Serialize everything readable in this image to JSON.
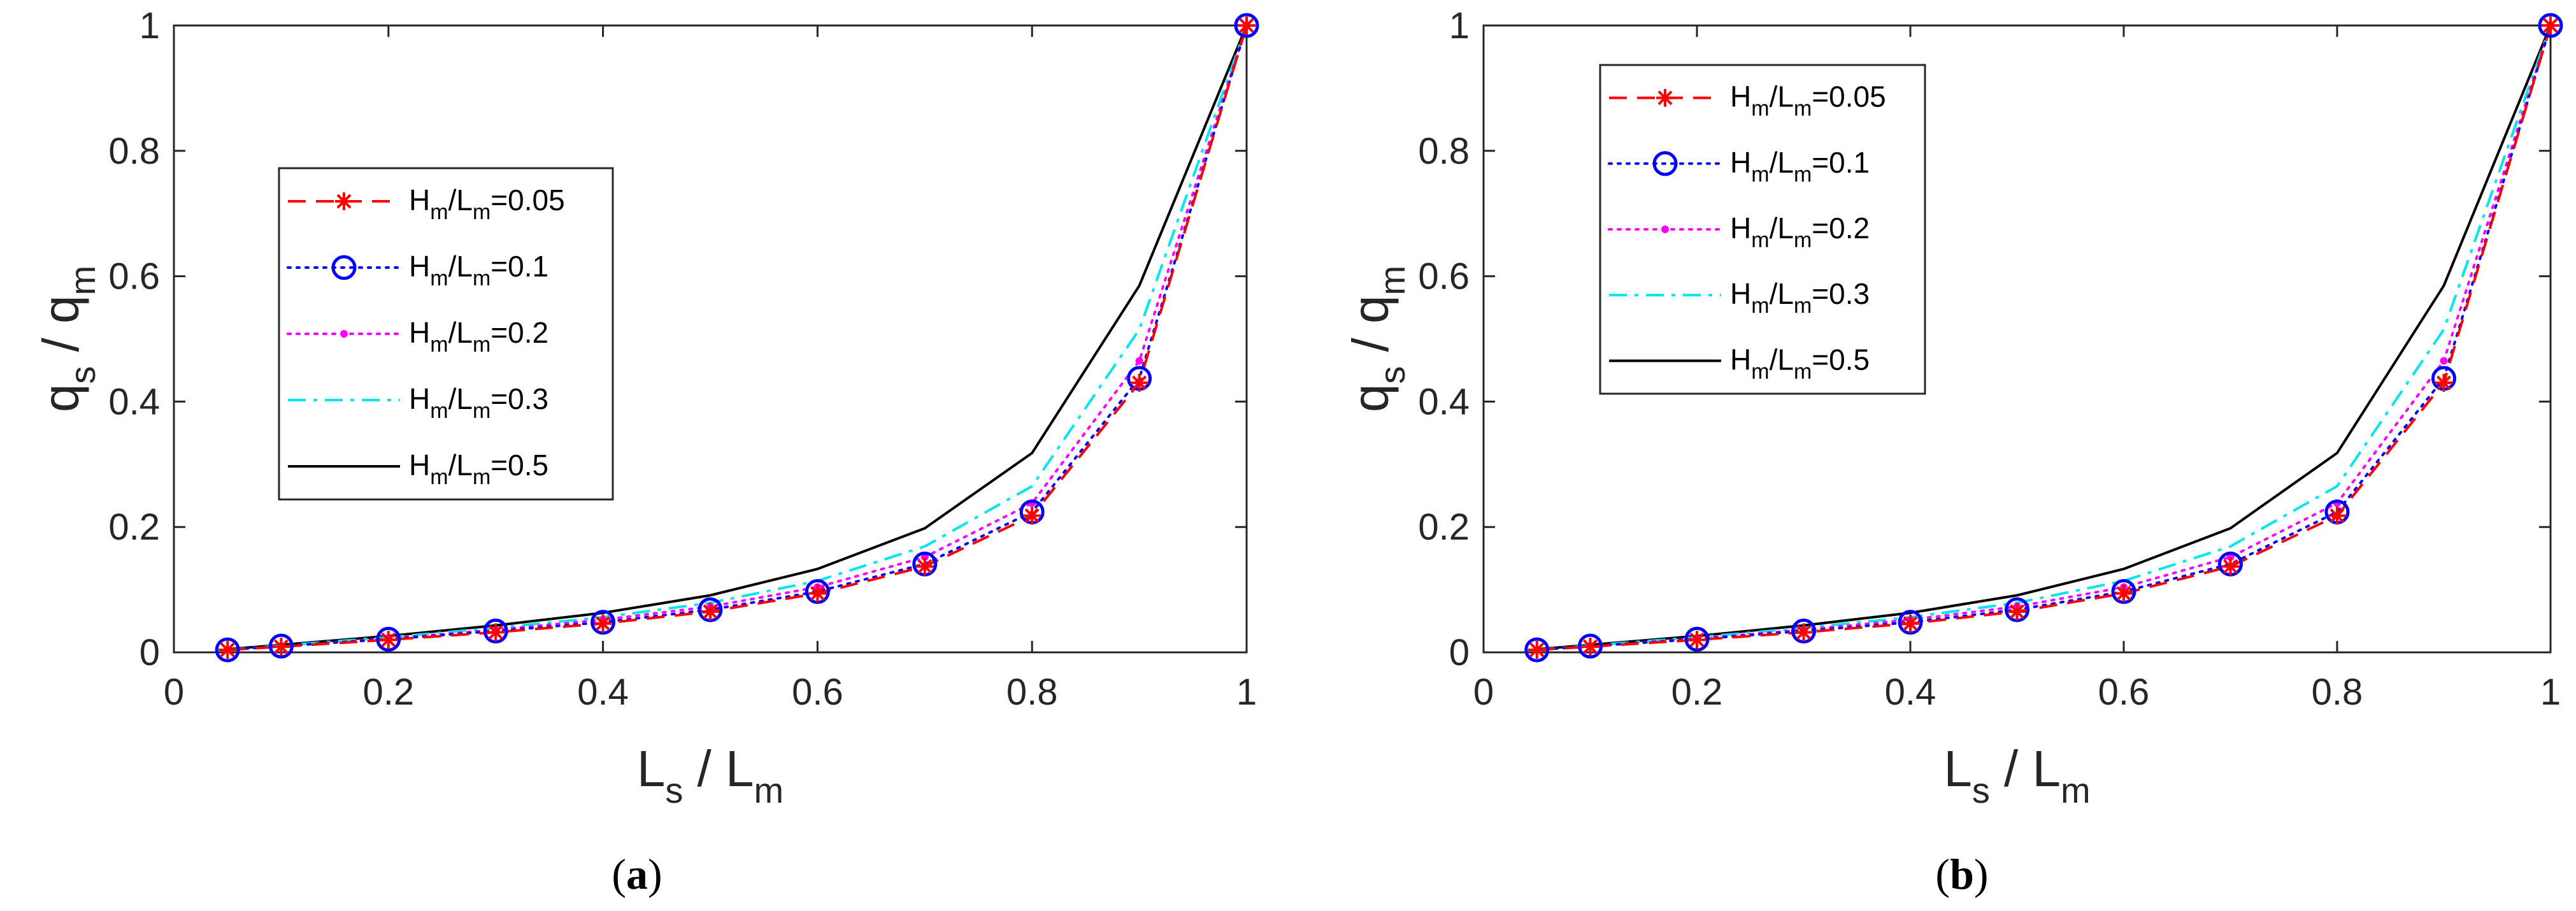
{
  "chart_data": [
    {
      "type": "line",
      "panel": "a",
      "caption": {
        "open": "(",
        "letter": "a",
        "close": ")"
      },
      "xlabel": {
        "main": "L",
        "sub1": "s",
        "sep": " / L",
        "sub2": "m"
      },
      "ylabel": {
        "main": "q",
        "sub1": "s",
        "sep": " / q",
        "sub2": "m"
      },
      "xlim": [
        0,
        1
      ],
      "ylim": [
        0,
        1
      ],
      "xticks": [
        0,
        0.2,
        0.4,
        0.6,
        0.8,
        1
      ],
      "xtick_labels": [
        "0",
        "0.2",
        "0.4",
        "0.6",
        "0.8",
        "1"
      ],
      "yticks": [
        0,
        0.2,
        0.4,
        0.6,
        0.8,
        1
      ],
      "ytick_labels": [
        "0",
        "0.2",
        "0.4",
        "0.6",
        "0.8",
        "1"
      ],
      "legend_position": "middle-left",
      "x": [
        0.05,
        0.1,
        0.2,
        0.3,
        0.4,
        0.5,
        0.6,
        0.7,
        0.8,
        0.9,
        1.0
      ],
      "series": [
        {
          "name": "Hm/Lm=0.05",
          "label": {
            "a": "H",
            "b": "m",
            "c": "/L",
            "d": "m",
            "e": "=0.05"
          },
          "color": "#ff0000",
          "line": "dashed",
          "marker": "asterisk",
          "values": [
            0.004,
            0.009,
            0.02,
            0.032,
            0.046,
            0.065,
            0.094,
            0.137,
            0.218,
            0.43,
            1.0
          ]
        },
        {
          "name": "Hm/Lm=0.1",
          "label": {
            "a": "H",
            "b": "m",
            "c": "/L",
            "d": "m",
            "e": "=0.1"
          },
          "color": "#0000ff",
          "line": "dotted",
          "marker": "circle",
          "values": [
            0.004,
            0.01,
            0.021,
            0.034,
            0.048,
            0.068,
            0.097,
            0.141,
            0.224,
            0.437,
            1.0
          ]
        },
        {
          "name": "Hm/Lm=0.2",
          "label": {
            "a": "H",
            "b": "m",
            "c": "/L",
            "d": "m",
            "e": "=0.2"
          },
          "color": "#ff00ff",
          "line": "dotted",
          "marker": "point",
          "values": [
            0.004,
            0.01,
            0.022,
            0.036,
            0.052,
            0.073,
            0.104,
            0.152,
            0.238,
            0.465,
            1.0
          ]
        },
        {
          "name": "Hm/Lm=0.3",
          "label": {
            "a": "H",
            "b": "m",
            "c": "/L",
            "d": "m",
            "e": "=0.3"
          },
          "color": "#00e5ee",
          "line": "dashdot",
          "marker": "none",
          "values": [
            0.004,
            0.011,
            0.024,
            0.039,
            0.056,
            0.079,
            0.114,
            0.169,
            0.265,
            0.515,
            1.0
          ]
        },
        {
          "name": "Hm/Lm=0.5",
          "label": {
            "a": "H",
            "b": "m",
            "c": "/L",
            "d": "m",
            "e": "=0.5"
          },
          "color": "#000000",
          "line": "solid",
          "marker": "none",
          "values": [
            0.005,
            0.012,
            0.026,
            0.043,
            0.063,
            0.091,
            0.133,
            0.198,
            0.318,
            0.585,
            1.0
          ]
        }
      ]
    },
    {
      "type": "line",
      "panel": "b",
      "caption": {
        "open": "(",
        "letter": "b",
        "close": ")"
      },
      "xlabel": {
        "main": "L",
        "sub1": "s",
        "sep": " / L",
        "sub2": "m"
      },
      "ylabel": {
        "main": "q",
        "sub1": "s",
        "sep": " / q",
        "sub2": "m"
      },
      "xlim": [
        0,
        1
      ],
      "ylim": [
        0,
        1
      ],
      "xticks": [
        0,
        0.2,
        0.4,
        0.6,
        0.8,
        1
      ],
      "xtick_labels": [
        "0",
        "0.2",
        "0.4",
        "0.6",
        "0.8",
        "1"
      ],
      "yticks": [
        0,
        0.2,
        0.4,
        0.6,
        0.8,
        1
      ],
      "ytick_labels": [
        "0",
        "0.2",
        "0.4",
        "0.6",
        "0.8",
        "1"
      ],
      "legend_position": "top-left",
      "x": [
        0.05,
        0.1,
        0.2,
        0.3,
        0.4,
        0.5,
        0.6,
        0.7,
        0.8,
        0.9,
        1.0
      ],
      "series": [
        {
          "name": "Hm/Lm=0.05",
          "label": {
            "a": "H",
            "b": "m",
            "c": "/L",
            "d": "m",
            "e": "=0.05"
          },
          "color": "#ff0000",
          "line": "dashed",
          "marker": "asterisk",
          "values": [
            0.004,
            0.009,
            0.02,
            0.032,
            0.046,
            0.065,
            0.094,
            0.137,
            0.218,
            0.43,
            1.0
          ]
        },
        {
          "name": "Hm/Lm=0.1",
          "label": {
            "a": "H",
            "b": "m",
            "c": "/L",
            "d": "m",
            "e": "=0.1"
          },
          "color": "#0000ff",
          "line": "dotted",
          "marker": "circle",
          "values": [
            0.004,
            0.01,
            0.021,
            0.034,
            0.048,
            0.068,
            0.097,
            0.141,
            0.224,
            0.437,
            1.0
          ]
        },
        {
          "name": "Hm/Lm=0.2",
          "label": {
            "a": "H",
            "b": "m",
            "c": "/L",
            "d": "m",
            "e": "=0.2"
          },
          "color": "#ff00ff",
          "line": "dotted",
          "marker": "point",
          "values": [
            0.004,
            0.01,
            0.022,
            0.036,
            0.052,
            0.073,
            0.104,
            0.152,
            0.238,
            0.465,
            1.0
          ]
        },
        {
          "name": "Hm/Lm=0.3",
          "label": {
            "a": "H",
            "b": "m",
            "c": "/L",
            "d": "m",
            "e": "=0.3"
          },
          "color": "#00e5ee",
          "line": "dashdot",
          "marker": "none",
          "values": [
            0.004,
            0.011,
            0.024,
            0.039,
            0.056,
            0.079,
            0.114,
            0.169,
            0.265,
            0.515,
            1.0
          ]
        },
        {
          "name": "Hm/Lm=0.5",
          "label": {
            "a": "H",
            "b": "m",
            "c": "/L",
            "d": "m",
            "e": "=0.5"
          },
          "color": "#000000",
          "line": "solid",
          "marker": "none",
          "values": [
            0.005,
            0.012,
            0.026,
            0.043,
            0.063,
            0.091,
            0.133,
            0.198,
            0.318,
            0.585,
            1.0
          ]
        }
      ]
    }
  ]
}
